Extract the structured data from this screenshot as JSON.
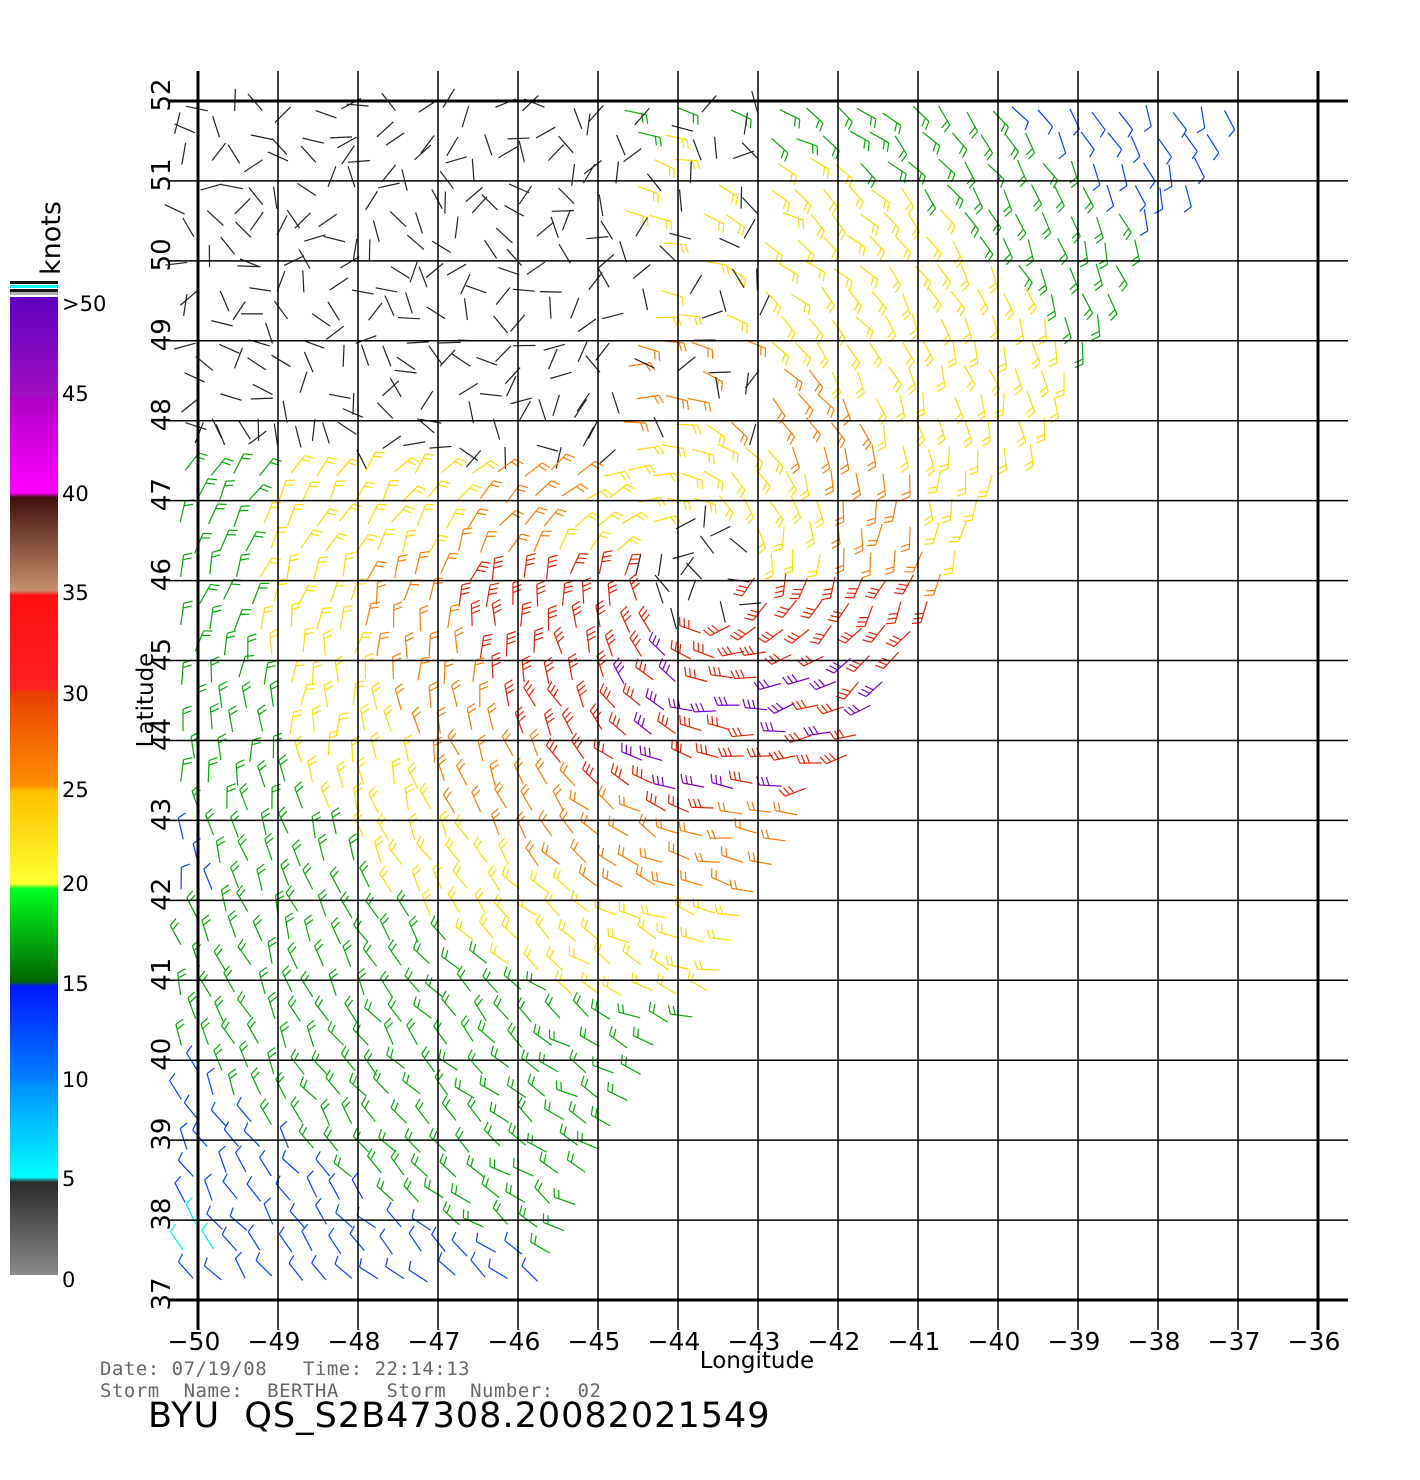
{
  "map": {
    "xlabel": "Longitude",
    "ylabel": "Latitude",
    "lon_range": [
      -50,
      -36
    ],
    "lat_range": [
      37,
      52
    ],
    "lon_ticks": [
      "−50",
      "−49",
      "−48",
      "−47",
      "−46",
      "−45",
      "−44",
      "−43",
      "−42",
      "−41",
      "−40",
      "−39",
      "−38",
      "−37",
      "−36"
    ],
    "lat_ticks": [
      "37",
      "38",
      "39",
      "40",
      "41",
      "42",
      "43",
      "44",
      "45",
      "46",
      "47",
      "48",
      "49",
      "50",
      "51",
      "52"
    ],
    "grid": true,
    "legend_placement": "left",
    "storm_center": {
      "lon": -43.8,
      "lat": 46.1
    },
    "swath_edge_bottom": {
      "lon": -45.9,
      "lat": 37.0
    },
    "swath_edge_top": {
      "lon": -37.0,
      "lat": 52.0
    }
  },
  "colorbar": {
    "unit": "knots",
    "labels": [
      ">50",
      "45",
      "40",
      "35",
      "30",
      "25",
      "20",
      "15",
      "10",
      "5",
      "0"
    ],
    "colors": {
      "gray": "#888888",
      "dark": "#222222",
      "cyan": "#00e5ff",
      "blue": "#0044ff",
      "green": "#00aa00",
      "yellow": "#ffd800",
      "orange": "#ff7a00",
      "red": "#e82000",
      "brown": "#7a4030",
      "magenta": "#ff00e0",
      "purple": "#7a00c8"
    }
  },
  "info": {
    "date_time": "Date: 07/19/08   Time: 22:14:13",
    "storm": "Storm  Name:  BERTHA    Storm  Number:  02",
    "product": "BYU  QS_S2B47308.20082021549"
  }
}
